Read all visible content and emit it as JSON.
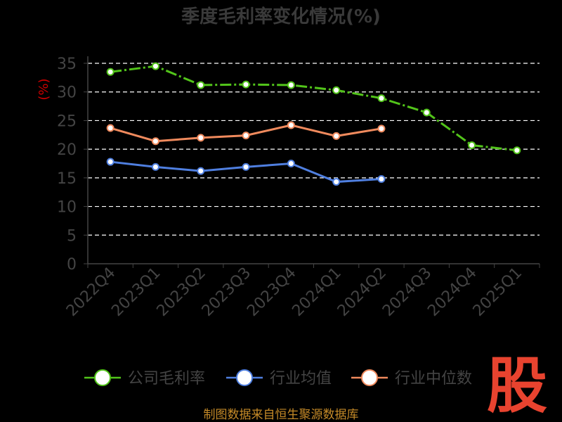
{
  "chart_data": {
    "type": "line",
    "title": "季度毛利率变化情况(%)",
    "unit_label": "(%)",
    "ylim": [
      0,
      35
    ],
    "yticks": [
      0,
      5,
      10,
      15,
      20,
      25,
      30,
      35
    ],
    "grid": true,
    "legend_position": "bottom",
    "categories": [
      "2022Q4",
      "2023Q1",
      "2023Q2",
      "2023Q3",
      "2023Q4",
      "2024Q1",
      "2024Q2",
      "2024Q3",
      "2024Q4",
      "2025Q1"
    ],
    "series": [
      {
        "name": "公司毛利率",
        "color": "#52c41a",
        "values": [
          33.5,
          34.5,
          31.2,
          31.3,
          31.2,
          30.3,
          28.9,
          26.4,
          20.7,
          19.8
        ]
      },
      {
        "name": "行业均值",
        "color": "#4f7fe0",
        "values": [
          17.8,
          16.9,
          16.2,
          16.9,
          17.5,
          14.3,
          14.8,
          null,
          null,
          null
        ]
      },
      {
        "name": "行业中位数",
        "color": "#f08a5d",
        "values": [
          23.7,
          21.4,
          22.0,
          22.4,
          24.2,
          22.3,
          23.6,
          null,
          null,
          null
        ]
      }
    ]
  },
  "footer": {
    "source": "制图数据来自恒生聚源数据库"
  },
  "logo": {
    "text": "股"
  }
}
